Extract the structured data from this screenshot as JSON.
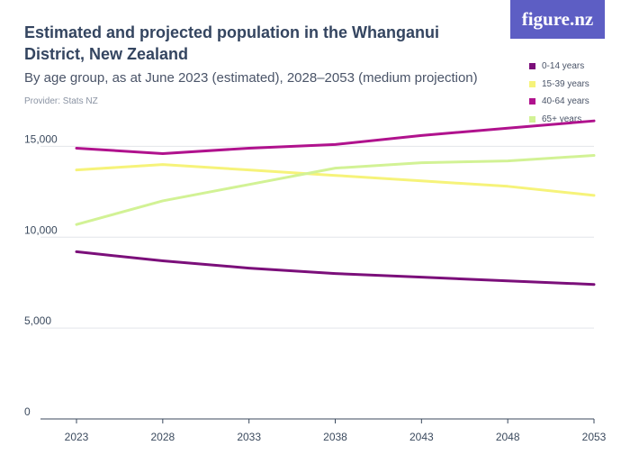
{
  "header": {
    "title": "Estimated and projected population in the Whanganui District, New Zealand",
    "subtitle": "By age group, as at June 2023 (estimated), 2028–2053 (medium projection)",
    "provider": "Provider: Stats NZ",
    "logo": "figure.nz"
  },
  "colors": {
    "background": "#ffffff",
    "grid": "#e3e5ea",
    "axis": "#3b4a5e",
    "logo_bg": "#5d5ec4"
  },
  "chart_data": {
    "type": "line",
    "x": [
      "2023",
      "2028",
      "2033",
      "2038",
      "2043",
      "2048",
      "2053"
    ],
    "ylim": [
      0,
      17500
    ],
    "yticks": [
      0,
      5000,
      10000,
      15000
    ],
    "ytick_labels": [
      "0",
      "5,000",
      "10,000",
      "15,000"
    ],
    "grid": true,
    "legend_position": "top-right",
    "series": [
      {
        "name": "0-14 years",
        "color": "#7b0f7a",
        "values": [
          9200,
          8700,
          8300,
          8000,
          7800,
          7600,
          7400
        ]
      },
      {
        "name": "15-39 years",
        "color": "#f6f37a",
        "values": [
          13700,
          14000,
          13700,
          13400,
          13100,
          12800,
          12300
        ]
      },
      {
        "name": "40-64 years",
        "color": "#b0128d",
        "values": [
          14900,
          14600,
          14900,
          15100,
          15600,
          16000,
          16400
        ]
      },
      {
        "name": "65+ years",
        "color": "#d2f295",
        "values": [
          10700,
          12000,
          12900,
          13800,
          14100,
          14200,
          14500
        ]
      }
    ]
  }
}
